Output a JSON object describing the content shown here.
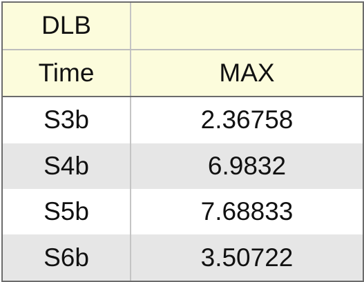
{
  "table": {
    "header_rows": [
      [
        "DLB",
        ""
      ],
      [
        "Time",
        "MAX"
      ]
    ],
    "rows": [
      [
        "S3b",
        "2.36758"
      ],
      [
        "S4b",
        "6.9832"
      ],
      [
        "S5b",
        "7.68833"
      ],
      [
        "S6b",
        "3.50722"
      ]
    ]
  },
  "colors": {
    "header_bg": "#fcfcdc",
    "row_alt_bg": "#e6e6e6",
    "border": "#6b6b6b"
  }
}
